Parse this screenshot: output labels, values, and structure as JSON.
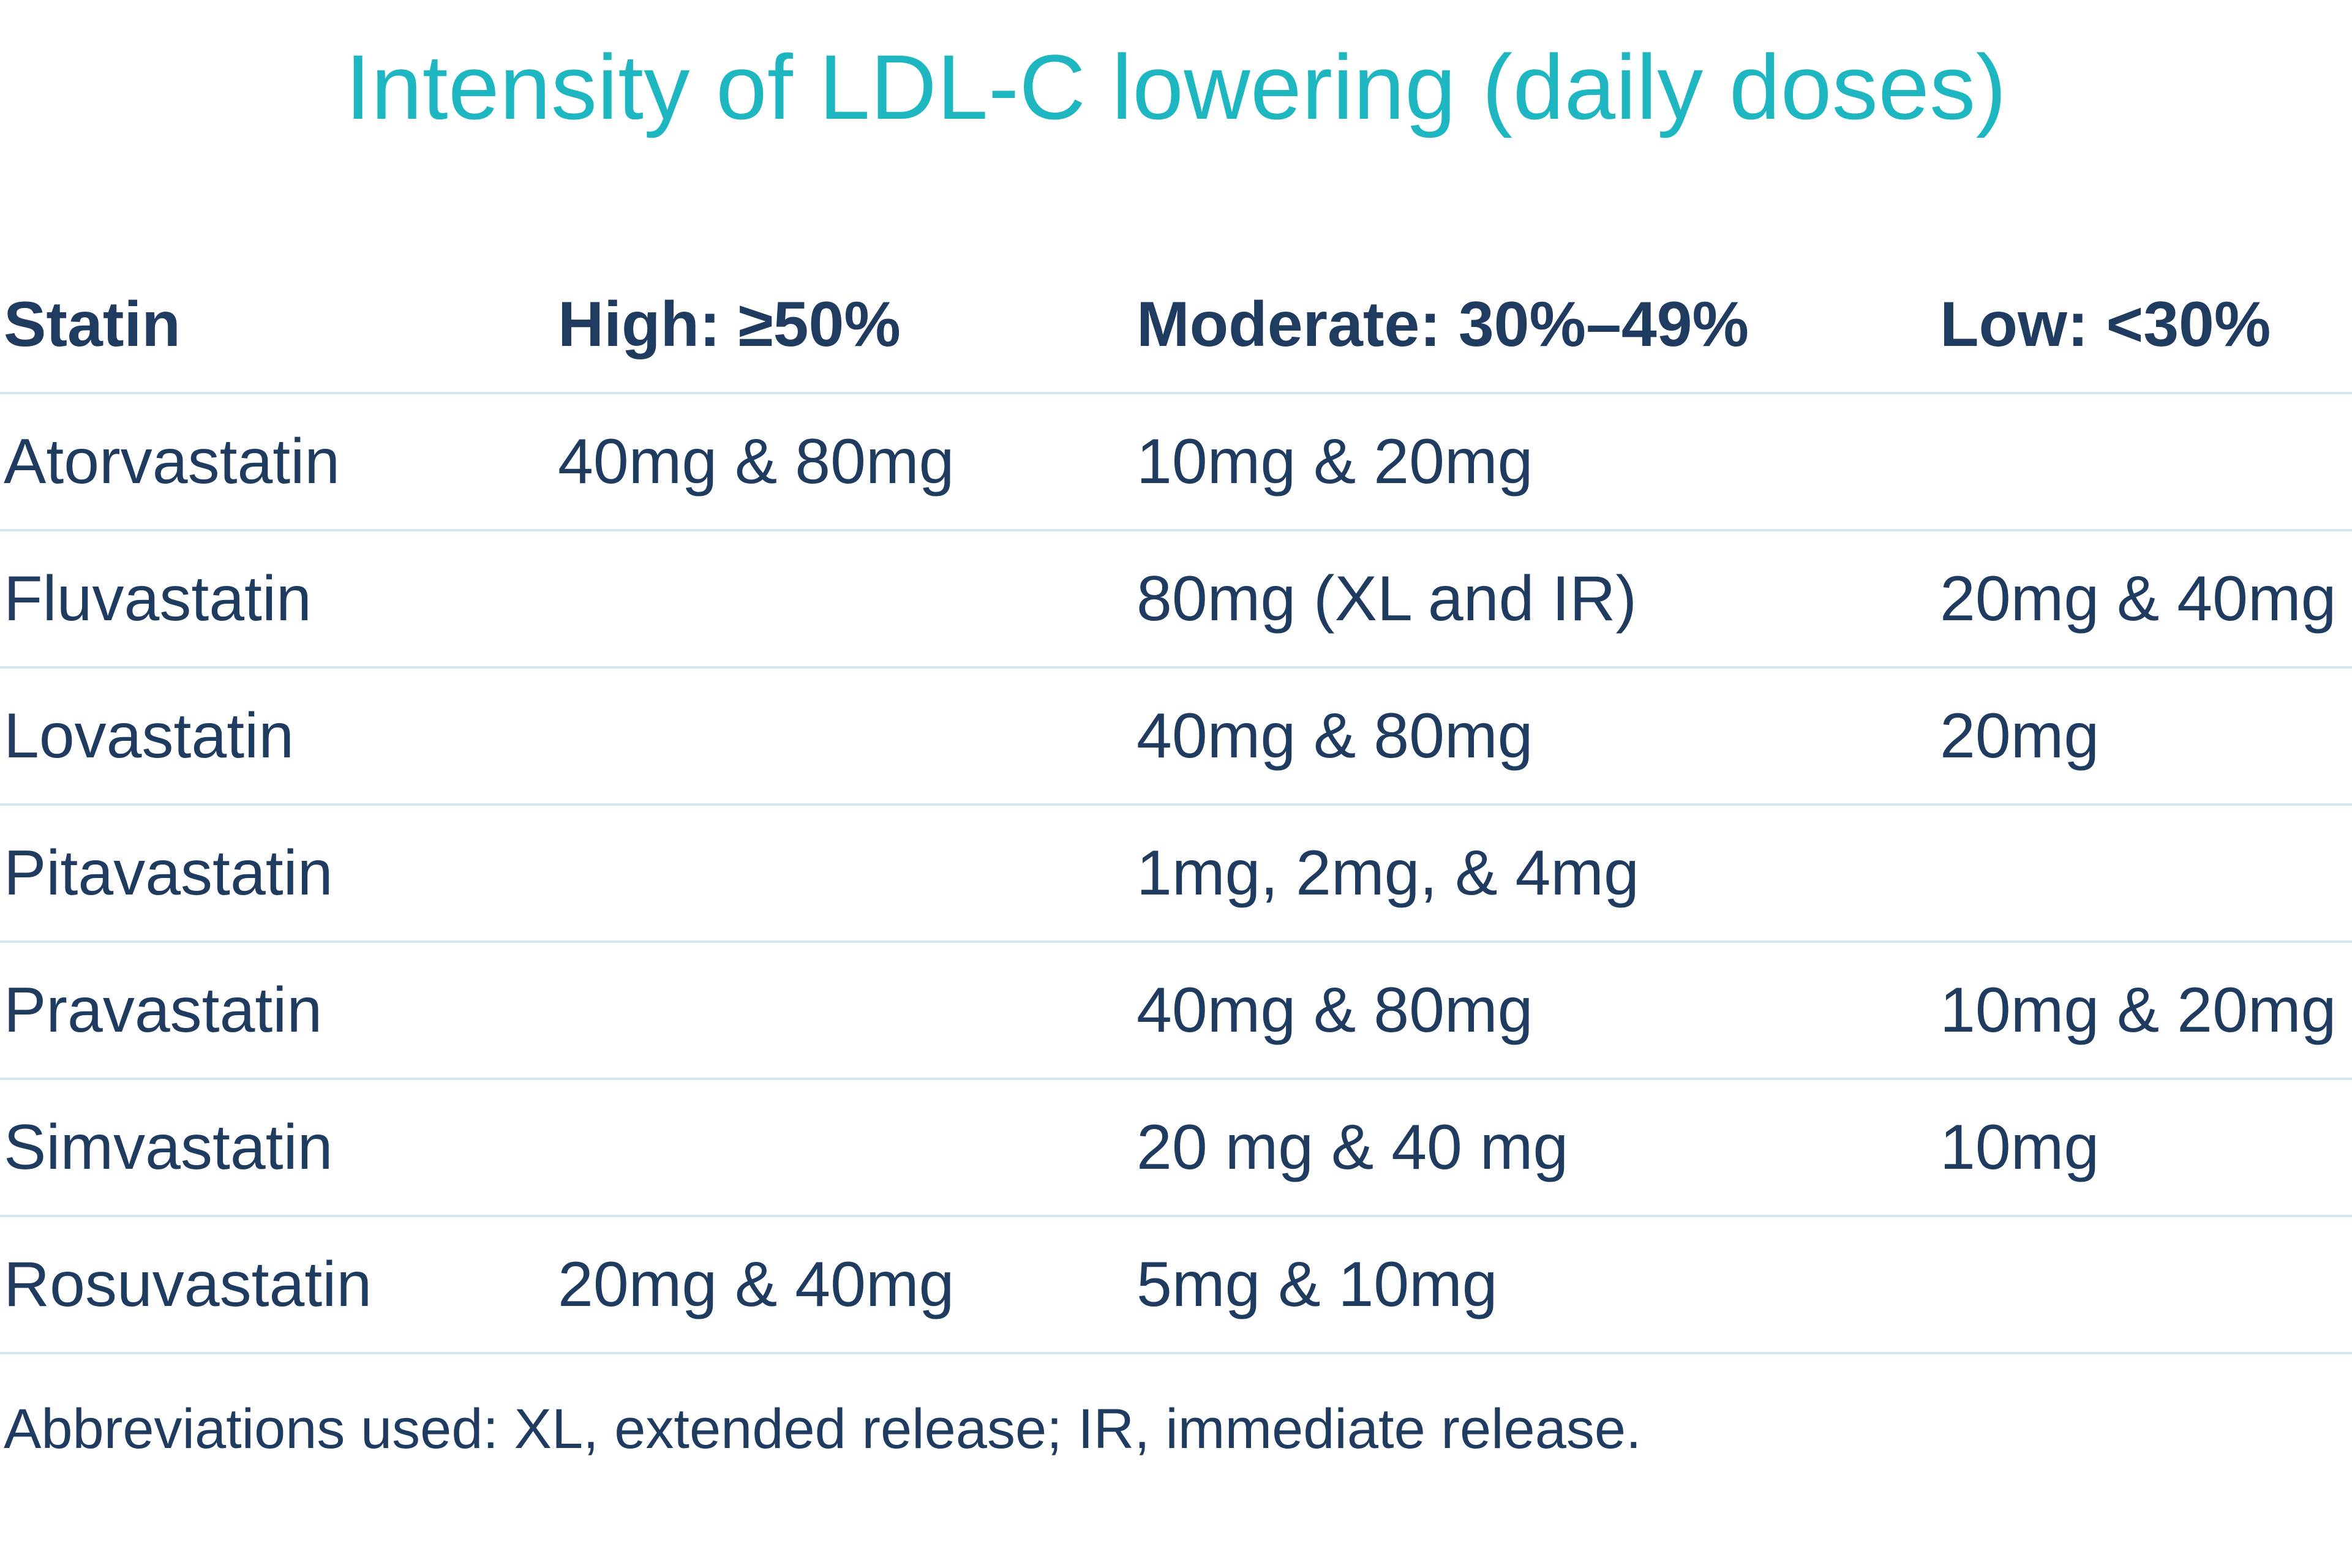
{
  "title": "Intensity of LDL-C lowering (daily doses)",
  "table": {
    "headers": [
      "Statin",
      "High: ≥50%",
      "Moderate: 30%–49%",
      "Low: <30%"
    ],
    "rows": [
      [
        "Atorvastatin",
        "40mg & 80mg",
        "10mg & 20mg",
        ""
      ],
      [
        "Fluvastatin",
        "",
        "80mg (XL and IR)",
        "20mg & 40mg"
      ],
      [
        "Lovastatin",
        "",
        "40mg & 80mg",
        "20mg"
      ],
      [
        "Pitavastatin",
        "",
        "1mg, 2mg, & 4mg",
        ""
      ],
      [
        "Pravastatin",
        "",
        "40mg & 80mg",
        "10mg & 20mg"
      ],
      [
        "Simvastatin",
        "",
        "20 mg & 40 mg",
        "10mg"
      ],
      [
        "Rosuvastatin",
        "20mg & 40mg",
        "5mg & 10mg",
        ""
      ]
    ]
  },
  "footnote": "Abbreviations used: XL, extended release; IR, immediate release.",
  "colors": {
    "title": "#1db6c1",
    "text": "#1f3b5f",
    "divider": "#d7e6ea",
    "background": "#ffffff"
  }
}
